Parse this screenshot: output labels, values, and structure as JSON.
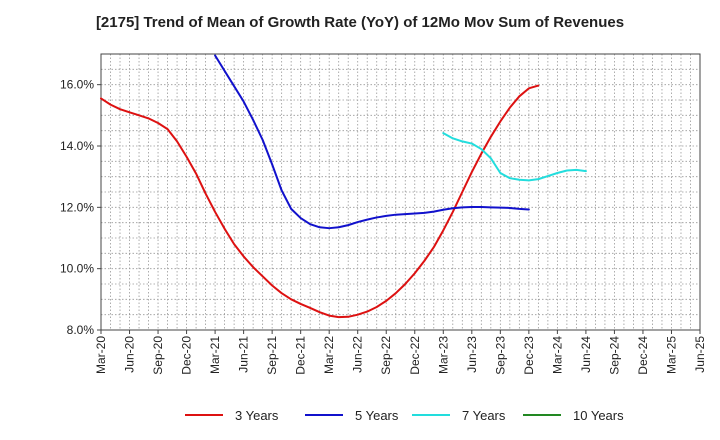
{
  "chart_data": {
    "type": "line",
    "title": "[2175]  Trend of Mean of Growth Rate (YoY) of 12Mo Mov Sum of Revenues",
    "xlabel": "",
    "ylabel": "",
    "ylim": [
      8.0,
      17.0
    ],
    "y_ticks": [
      8.0,
      10.0,
      12.0,
      14.0,
      16.0
    ],
    "y_tick_labels": [
      "8.0%",
      "10.0%",
      "12.0%",
      "14.0%",
      "16.0%"
    ],
    "x_tick_labels": [
      "Mar-20",
      "Jun-20",
      "Sep-20",
      "Dec-20",
      "Mar-21",
      "Jun-21",
      "Sep-21",
      "Dec-21",
      "Mar-22",
      "Jun-22",
      "Sep-22",
      "Dec-22",
      "Mar-23",
      "Jun-23",
      "Sep-23",
      "Dec-23",
      "Mar-24",
      "Jun-24",
      "Sep-24",
      "Dec-24",
      "Mar-25",
      "Jun-25"
    ],
    "grid": true,
    "legend_position": "bottom",
    "series": [
      {
        "name": "3 Years",
        "color": "#dd1111",
        "start_index": 0,
        "values": [
          15.55,
          15.35,
          15.2,
          15.1,
          15.0,
          14.9,
          14.75,
          14.55,
          14.15,
          13.65,
          13.1,
          12.45,
          11.85,
          11.3,
          10.8,
          10.4,
          10.05,
          9.75,
          9.45,
          9.2,
          9.0,
          8.85,
          8.72,
          8.58,
          8.47,
          8.42,
          8.43,
          8.5,
          8.6,
          8.75,
          8.95,
          9.2,
          9.5,
          9.85,
          10.25,
          10.7,
          11.25,
          11.85,
          12.5,
          13.15,
          13.75,
          14.3,
          14.8,
          15.25,
          15.62,
          15.88,
          15.97
        ]
      },
      {
        "name": "5 Years",
        "color": "#1111cc",
        "start_index": 12,
        "values": [
          16.95,
          16.45,
          15.95,
          15.45,
          14.85,
          14.2,
          13.4,
          12.55,
          11.95,
          11.65,
          11.45,
          11.35,
          11.32,
          11.35,
          11.42,
          11.52,
          11.6,
          11.67,
          11.72,
          11.76,
          11.78,
          11.8,
          11.82,
          11.86,
          11.92,
          11.97,
          12.0,
          12.01,
          12.01,
          12.0,
          11.99,
          11.98,
          11.95,
          11.93
        ]
      },
      {
        "name": "7 Years",
        "color": "#22dddd",
        "start_index": 36,
        "values": [
          14.42,
          14.25,
          14.15,
          14.08,
          13.9,
          13.6,
          13.12,
          12.95,
          12.9,
          12.88,
          12.92,
          13.02,
          13.12,
          13.2,
          13.22,
          13.18
        ]
      },
      {
        "name": "10 Years",
        "color": "#228822",
        "start_index": 0,
        "values": []
      }
    ]
  }
}
